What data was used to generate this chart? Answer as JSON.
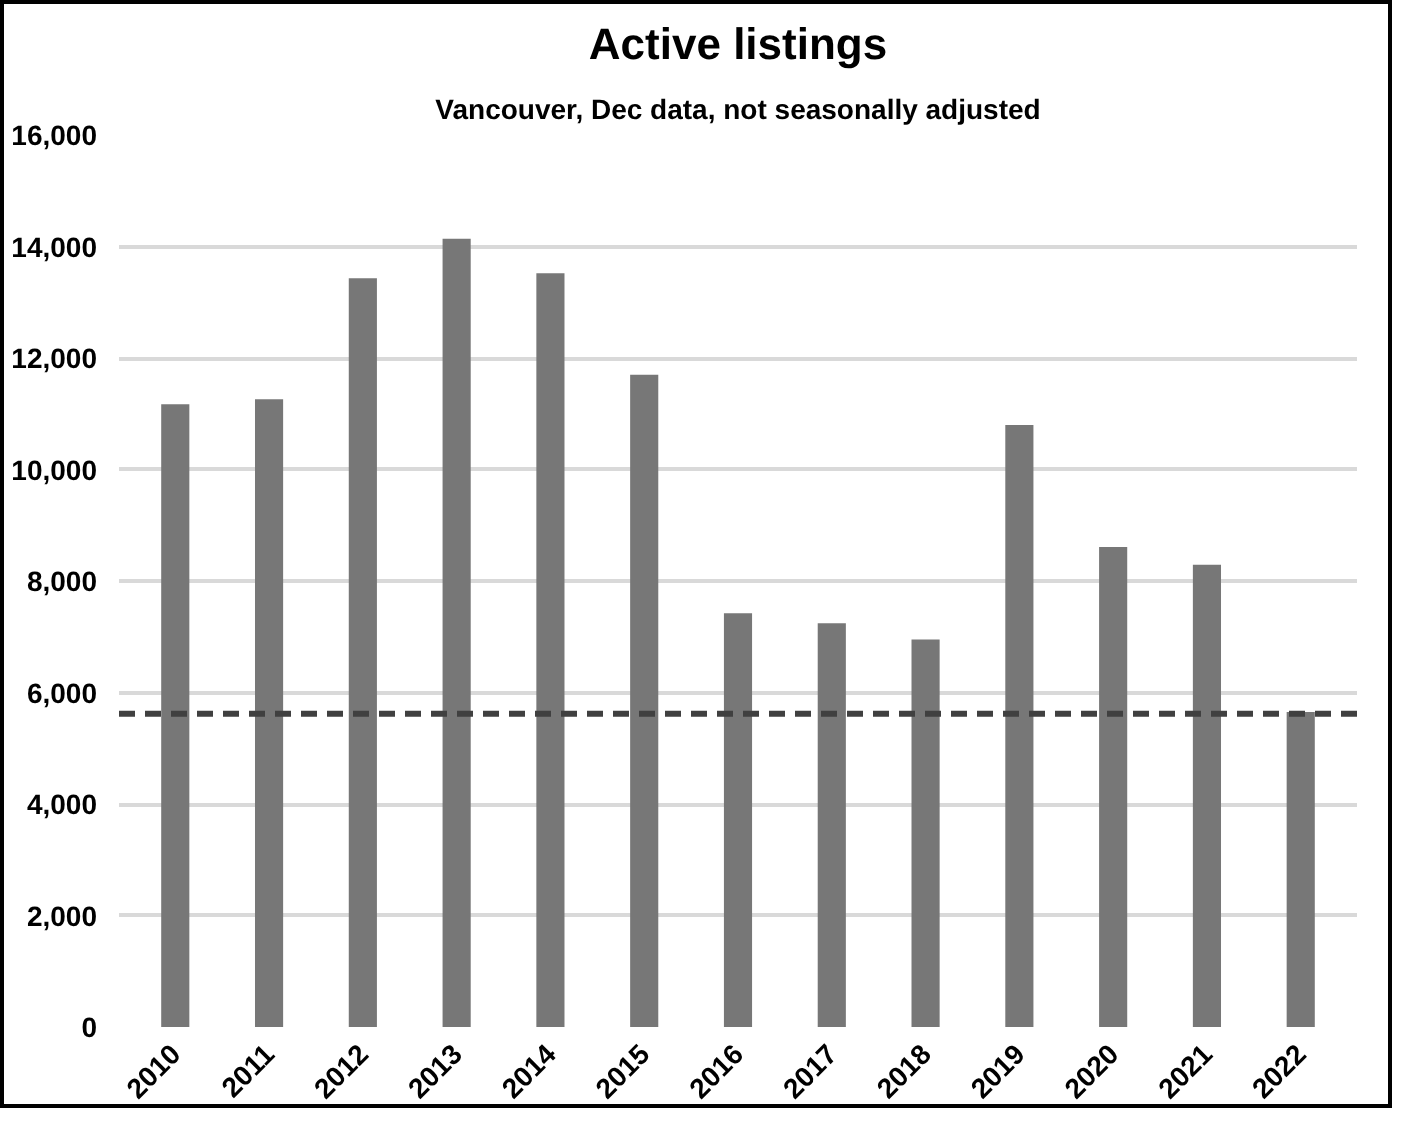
{
  "chart_data": {
    "type": "bar",
    "title": "Active listings",
    "subtitle": "Vancouver, Dec data, not seasonally adjusted",
    "categories": [
      "2010",
      "2011",
      "2012",
      "2013",
      "2014",
      "2015",
      "2016",
      "2017",
      "2018",
      "2019",
      "2020",
      "2021",
      "2022"
    ],
    "values": [
      11170,
      11260,
      13430,
      14140,
      13520,
      11700,
      7420,
      7240,
      6950,
      10800,
      8610,
      8290,
      5650
    ],
    "color": "#777777",
    "ylim": [
      0,
      16000
    ],
    "yticks": [
      {
        "value": 0,
        "label": "0"
      },
      {
        "value": 2000,
        "label": "2,000"
      },
      {
        "value": 4000,
        "label": "4,000"
      },
      {
        "value": 6000,
        "label": "6,000"
      },
      {
        "value": 8000,
        "label": "8,000"
      },
      {
        "value": 10000,
        "label": "10,000"
      },
      {
        "value": 12000,
        "label": "12,000"
      },
      {
        "value": 14000,
        "label": "14,000"
      },
      {
        "value": 16000,
        "label": "16,000"
      }
    ],
    "grid": "y",
    "ref_lines": [
      {
        "axis": "y",
        "value": 5620,
        "color": "#404040",
        "line_style": "dashed"
      }
    ]
  }
}
